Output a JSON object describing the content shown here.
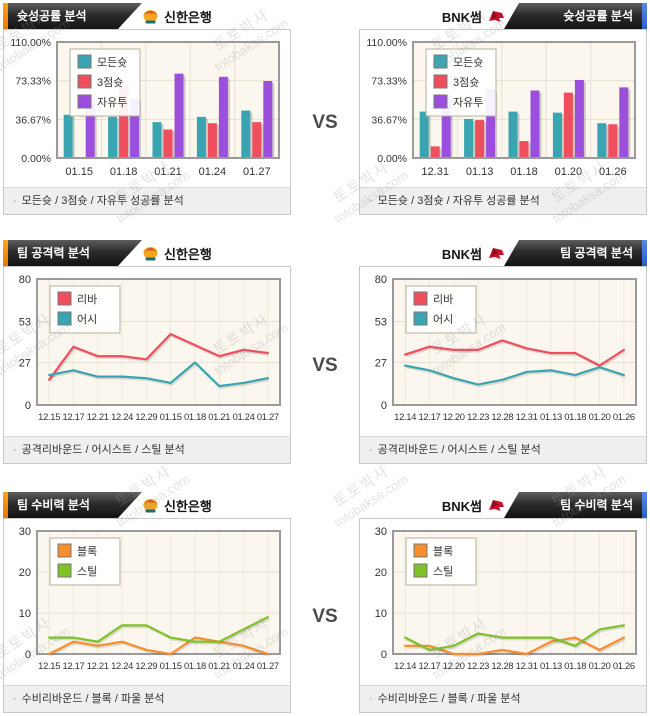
{
  "page": {
    "vs_label": "VS",
    "caption_bullet": "·",
    "colors": {
      "accent_left_orange": "#ef8200",
      "accent_right_blue": "#3d6bd8",
      "header_dark": "#2c2c2c",
      "plot_background": "#fbf7ee",
      "footer_background": "#f0efee"
    }
  },
  "watermark": {
    "line1": "토토박사",
    "line2": "totobaksa.com"
  },
  "teams": {
    "left": {
      "name": "신한은행"
    },
    "right": {
      "name": "BNK썸"
    }
  },
  "rows": [
    {
      "title": "슛성공률 분석",
      "caption": "모든슛 / 3점슛 / 자유투 성공률 분석"
    },
    {
      "title": "팀 공격력 분석",
      "caption": "공격리바운드 / 어시스트 / 스틸 분석"
    },
    {
      "title": "팀 수비력 분석",
      "caption": "수비리바운드 / 블록 / 파울 분석"
    }
  ],
  "chart_data": [
    {
      "type": "bar",
      "team": "신한은행",
      "title": "슛성공률 분석",
      "unit": "%",
      "categories": [
        "01.15",
        "01.18",
        "01.21",
        "01.24",
        "01.27"
      ],
      "series": [
        {
          "name": "모든슛",
          "color": "#3aa5b1",
          "values": [
            41,
            39,
            34,
            39,
            45
          ]
        },
        {
          "name": "3점슛",
          "color": "#ef4e5f",
          "values": [
            0,
            68,
            27,
            33,
            34
          ]
        },
        {
          "name": "자유투",
          "color": "#9c4fdc",
          "values": [
            58,
            56,
            80,
            77,
            73
          ]
        }
      ],
      "ylim": [
        0,
        110
      ],
      "ytick_values": [
        0,
        36.67,
        73.33,
        110
      ],
      "ytick_labels": [
        "0.00%",
        "36.67%",
        "73.33%",
        "110.00%"
      ],
      "legend_position": "top-left",
      "grid": true
    },
    {
      "type": "bar",
      "team": "BNK썸",
      "title": "슛성공률 분석",
      "unit": "%",
      "categories": [
        "12.31",
        "01.13",
        "01.18",
        "01.20",
        "01.26"
      ],
      "series": [
        {
          "name": "모든슛",
          "color": "#3aa5b1",
          "values": [
            44,
            37,
            44,
            43,
            33
          ]
        },
        {
          "name": "3점슛",
          "color": "#ef4e5f",
          "values": [
            11,
            36,
            16,
            62,
            32
          ]
        },
        {
          "name": "자유투",
          "color": "#9c4fdc",
          "values": [
            60,
            65,
            64,
            74,
            67
          ]
        }
      ],
      "ylim": [
        0,
        110
      ],
      "ytick_values": [
        0,
        36.67,
        73.33,
        110
      ],
      "ytick_labels": [
        "0.00%",
        "36.67%",
        "73.33%",
        "110.00%"
      ],
      "legend_position": "top-left",
      "grid": true
    },
    {
      "type": "line",
      "team": "신한은행",
      "title": "팀 공격력 분석",
      "categories": [
        "12.15",
        "12.17",
        "12.21",
        "12.24",
        "12.29",
        "01.15",
        "01.18",
        "01.21",
        "01.24",
        "01.27"
      ],
      "series": [
        {
          "name": "리바",
          "color": "#ef4e5f",
          "values": [
            16,
            37,
            31,
            31,
            29,
            45,
            38,
            31,
            35,
            33
          ]
        },
        {
          "name": "어시",
          "color": "#3aa5b1",
          "values": [
            19,
            22,
            18,
            18,
            17,
            14,
            27,
            12,
            14,
            17
          ]
        }
      ],
      "ylim": [
        0,
        80
      ],
      "ytick_values": [
        0,
        27,
        53,
        80
      ],
      "ytick_labels": [
        "0",
        "27",
        "53",
        "80"
      ],
      "legend_position": "top-left",
      "grid": true
    },
    {
      "type": "line",
      "team": "BNK썸",
      "title": "팀 공격력 분석",
      "categories": [
        "12.14",
        "12.17",
        "12.20",
        "12.23",
        "12.28",
        "12.31",
        "01.13",
        "01.18",
        "01.20",
        "01.26"
      ],
      "series": [
        {
          "name": "리바",
          "color": "#ef4e5f",
          "values": [
            32,
            37,
            35,
            35,
            41,
            36,
            33,
            33,
            25,
            35
          ]
        },
        {
          "name": "어시",
          "color": "#3aa5b1",
          "values": [
            25,
            22,
            17,
            13,
            16,
            21,
            22,
            19,
            24,
            19
          ]
        }
      ],
      "ylim": [
        0,
        80
      ],
      "ytick_values": [
        0,
        27,
        53,
        80
      ],
      "ytick_labels": [
        "0",
        "27",
        "53",
        "80"
      ],
      "legend_position": "top-left",
      "grid": true
    },
    {
      "type": "line",
      "team": "신한은행",
      "title": "팀 수비력 분석",
      "categories": [
        "12.15",
        "12.17",
        "12.21",
        "12.24",
        "12.29",
        "01.15",
        "01.18",
        "01.21",
        "01.24",
        "01.27"
      ],
      "series": [
        {
          "name": "블록",
          "color": "#f78d2d",
          "values": [
            0,
            3,
            2,
            3,
            1,
            0,
            4,
            3,
            2,
            0
          ]
        },
        {
          "name": "스틸",
          "color": "#7ec227",
          "values": [
            4,
            4,
            3,
            7,
            7,
            4,
            3,
            3,
            6,
            9
          ]
        }
      ],
      "ylim": [
        0,
        30
      ],
      "ytick_values": [
        0,
        10,
        20,
        30
      ],
      "ytick_labels": [
        "0",
        "10",
        "20",
        "30"
      ],
      "legend_position": "top-left",
      "grid": true
    },
    {
      "type": "line",
      "team": "BNK썸",
      "title": "팀 수비력 분석",
      "categories": [
        "12.14",
        "12.17",
        "12.20",
        "12.23",
        "12.28",
        "12.31",
        "01.13",
        "01.18",
        "01.20",
        "01.26"
      ],
      "series": [
        {
          "name": "블록",
          "color": "#f78d2d",
          "values": [
            2,
            2,
            0,
            0,
            1,
            0,
            3,
            4,
            1,
            4
          ]
        },
        {
          "name": "스틸",
          "color": "#7ec227",
          "values": [
            4,
            1,
            2,
            5,
            4,
            4,
            4,
            2,
            6,
            7
          ]
        }
      ],
      "ylim": [
        0,
        30
      ],
      "ytick_values": [
        0,
        10,
        20,
        30
      ],
      "ytick_labels": [
        "0",
        "10",
        "20",
        "30"
      ],
      "legend_position": "top-left",
      "grid": true
    }
  ]
}
